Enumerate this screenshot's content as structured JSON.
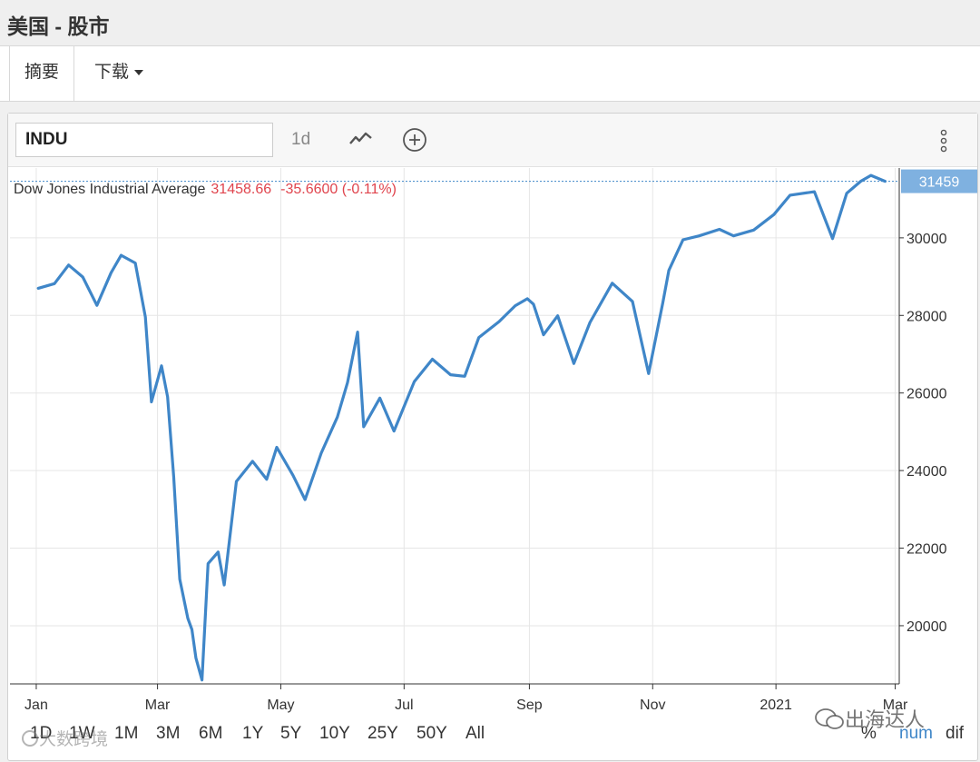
{
  "header": {
    "title": "美国 - 股市"
  },
  "tabs": [
    {
      "label": "摘要",
      "active": true
    },
    {
      "label": "下载",
      "has_dropdown": true
    }
  ],
  "toolbar": {
    "symbol_value": "INDU",
    "interval_label": "1d",
    "icons": [
      "line-chart-icon",
      "add-circle-icon",
      "more-vertical-icon"
    ]
  },
  "legend": {
    "name": "Dow Jones Industrial Average",
    "last": "31458.66",
    "change": "-35.6600 (-0.11%)",
    "change_color": "#e0444d"
  },
  "range_buttons": [
    "1D",
    "1W",
    "1M",
    "3M",
    "6M",
    "1Y",
    "5Y",
    "10Y",
    "25Y",
    "50Y",
    "All"
  ],
  "format_buttons": [
    {
      "label": "%",
      "active": false
    },
    {
      "label": "num",
      "active": true
    },
    {
      "label": "dif",
      "active": false
    }
  ],
  "watermarks": [
    "大数跨境",
    "出海达人"
  ],
  "colors": {
    "line": "#3f86c8",
    "last_price_tag": "#7fb1e0",
    "active_format": "#3f86c8"
  },
  "chart_data": {
    "type": "line",
    "title": "",
    "xlabel": "",
    "ylabel": "",
    "x_tick_labels": [
      "Jan",
      "Mar",
      "May",
      "Jul",
      "Sep",
      "Nov",
      "2021",
      "Mar"
    ],
    "y_tick_labels": [
      "20000",
      "22000",
      "24000",
      "26000",
      "28000",
      "30000"
    ],
    "ylim": [
      18500,
      31800
    ],
    "grid": true,
    "last_price_label": "31459",
    "series": [
      {
        "name": "Dow Jones Industrial Average",
        "x": [
          "2020-01-02",
          "2020-01-10",
          "2020-01-17",
          "2020-01-24",
          "2020-01-31",
          "2020-02-07",
          "2020-02-12",
          "2020-02-19",
          "2020-02-24",
          "2020-02-27",
          "2020-03-03",
          "2020-03-06",
          "2020-03-09",
          "2020-03-12",
          "2020-03-16",
          "2020-03-18",
          "2020-03-20",
          "2020-03-23",
          "2020-03-26",
          "2020-03-31",
          "2020-04-03",
          "2020-04-09",
          "2020-04-17",
          "2020-04-24",
          "2020-04-29",
          "2020-05-07",
          "2020-05-13",
          "2020-05-21",
          "2020-05-29",
          "2020-06-03",
          "2020-06-08",
          "2020-06-11",
          "2020-06-19",
          "2020-06-26",
          "2020-07-06",
          "2020-07-15",
          "2020-07-24",
          "2020-07-31",
          "2020-08-07",
          "2020-08-17",
          "2020-08-25",
          "2020-08-31",
          "2020-09-03",
          "2020-09-08",
          "2020-09-15",
          "2020-09-23",
          "2020-10-01",
          "2020-10-12",
          "2020-10-22",
          "2020-10-30",
          "2020-11-06",
          "2020-11-09",
          "2020-11-16",
          "2020-11-24",
          "2020-12-04",
          "2020-12-11",
          "2020-12-21",
          "2020-12-31",
          "2021-01-08",
          "2021-01-20",
          "2021-01-29",
          "2021-02-05",
          "2021-02-12",
          "2021-02-17",
          "2021-02-24"
        ],
        "values": [
          28700,
          28820,
          29300,
          28990,
          28260,
          29100,
          29550,
          29350,
          27960,
          25770,
          26700,
          25900,
          23850,
          21200,
          20190,
          19900,
          19170,
          18600,
          21600,
          21900,
          21050,
          23720,
          24240,
          23775,
          24600,
          23880,
          23250,
          24450,
          25380,
          26270,
          27570,
          25130,
          25870,
          25020,
          26290,
          26870,
          26470,
          26430,
          27430,
          27840,
          28250,
          28430,
          28290,
          27500,
          27990,
          26760,
          27820,
          28830,
          28360,
          26500,
          28320,
          29160,
          29950,
          30050,
          30220,
          30050,
          30200,
          30600,
          31100,
          31190,
          29980,
          31150,
          31460,
          31610,
          31458.66
        ]
      }
    ]
  }
}
